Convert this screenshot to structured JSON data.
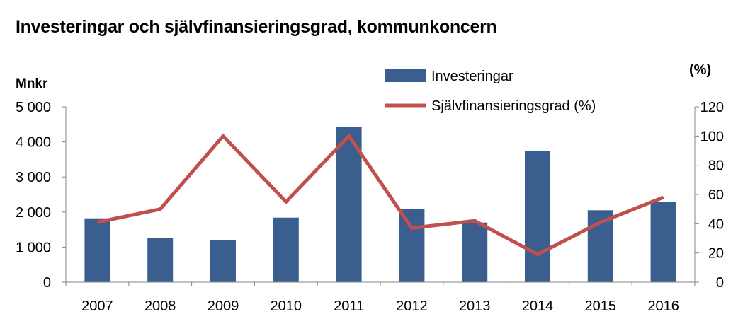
{
  "title": "Investeringar och självfinansieringsgrad, kommunkoncern",
  "chart_data": {
    "type": "bar",
    "categories": [
      "2007",
      "2008",
      "2009",
      "2010",
      "2011",
      "2012",
      "2013",
      "2014",
      "2015",
      "2016"
    ],
    "series": [
      {
        "name": "Investeringar",
        "type": "bar",
        "axis": "left",
        "color": "#3A5F8F",
        "values": [
          1820,
          1270,
          1190,
          1840,
          4430,
          2080,
          1700,
          3750,
          2050,
          2280
        ]
      },
      {
        "name": "Självfinansieringsgrad (%)",
        "type": "line",
        "axis": "right",
        "color": "#C0504D",
        "values": [
          41,
          50,
          100,
          55,
          100,
          37,
          42,
          19,
          41,
          58
        ]
      }
    ],
    "ylabel": "Mnkr",
    "ylabel_right": "(%)",
    "ylim": [
      0,
      5000
    ],
    "ylim_right": [
      0,
      120
    ],
    "yticks": [
      0,
      1000,
      2000,
      3000,
      4000,
      5000
    ],
    "ytick_labels": [
      "0",
      "1 000",
      "2 000",
      "3 000",
      "4 000",
      "5 000"
    ],
    "yticks_right": [
      0,
      20,
      40,
      60,
      80,
      100,
      120
    ],
    "grid": false,
    "legend": "top-center"
  }
}
